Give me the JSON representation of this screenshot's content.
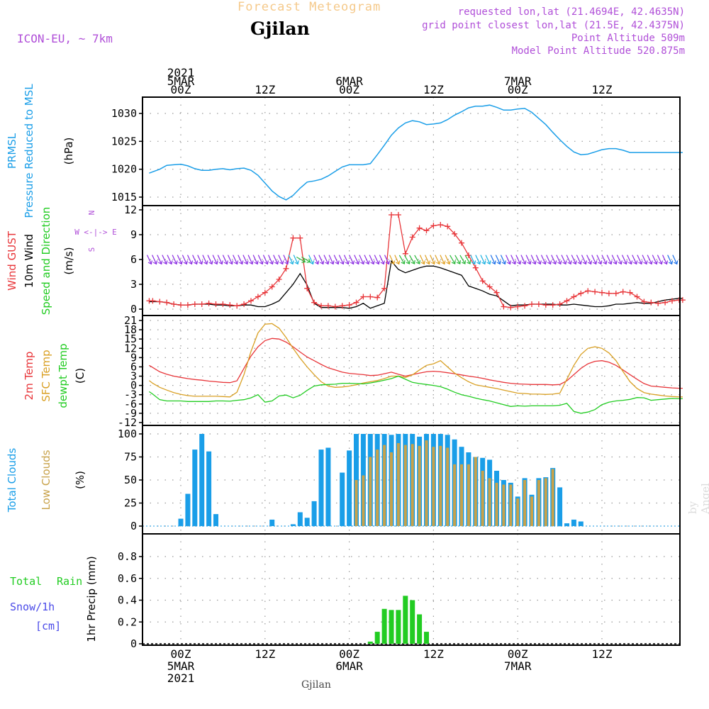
{
  "header": {
    "title": "Forecast Meteogram",
    "location": "Gjilan",
    "model": "ICON-EU, ~ 7km",
    "requested": "requested lon,lat (21.4694E, 42.4635N)",
    "grid_point": "grid point closest lon,lat (21.5E, 42.4375N)",
    "point_altitude": "Point Altitude 509m",
    "model_altitude": "Model Point Altitude 520.875m",
    "footer_location": "Gjilan",
    "watermark": "by Angel"
  },
  "colors": {
    "pressure": "#1a9ee8",
    "gust": "#e8363a",
    "wind": "#000000",
    "temp2m": "#e8363a",
    "sfc_temp": "#d9a024",
    "dewpoint": "#22cc22",
    "total_clouds": "#1a9ee8",
    "low_clouds": "#c8a24a",
    "rain": "#22cc22",
    "snow": "#4a4ae8",
    "label_purple": "#b04fd8",
    "title_orange": "#f5c98a"
  },
  "time_axis": {
    "top_labels": [
      {
        "hour": 0,
        "lines": [
          "2021",
          "5MAR",
          "00Z"
        ]
      },
      {
        "hour": 12,
        "lines": [
          "12Z"
        ]
      },
      {
        "hour": 24,
        "lines": [
          "6MAR",
          "00Z"
        ]
      },
      {
        "hour": 36,
        "lines": [
          "12Z"
        ]
      },
      {
        "hour": 48,
        "lines": [
          "7MAR",
          "00Z"
        ]
      },
      {
        "hour": 60,
        "lines": [
          "12Z"
        ]
      }
    ],
    "bottom_labels": [
      {
        "hour": 0,
        "lines": [
          "00Z",
          "5MAR",
          "2021"
        ]
      },
      {
        "hour": 12,
        "lines": [
          "12Z"
        ]
      },
      {
        "hour": 24,
        "lines": [
          "00Z",
          "6MAR"
        ]
      },
      {
        "hour": 36,
        "lines": [
          "12Z"
        ]
      },
      {
        "hour": 48,
        "lines": [
          "00Z",
          "7MAR"
        ]
      },
      {
        "hour": 60,
        "lines": [
          "12Z"
        ]
      }
    ]
  },
  "panels": {
    "pressure": {
      "labels": [
        "PRMSL",
        "Pressure Reduced to MSL"
      ],
      "unit": "(hPa)"
    },
    "wind": {
      "labels": [
        "Wind GUST",
        "10m Wind",
        "Speed and Direction"
      ],
      "unit": "(m/s)",
      "compass": "W <-|-> E",
      "north": "N",
      "south": "S"
    },
    "temperature": {
      "labels": [
        "2m Temp",
        "SFC Temp",
        "dewpt Temp"
      ],
      "unit": "(C)"
    },
    "clouds": {
      "labels": [
        "Total Clouds",
        "Low Clouds"
      ],
      "unit": "(%)"
    },
    "precip": {
      "labels": [
        "Total",
        "Rain",
        "Snow/1h",
        "[cm]"
      ],
      "unit": "1hr Precip (mm)"
    }
  },
  "chart_data": [
    {
      "type": "line",
      "name": "PRMSL",
      "ylabel": "(hPa)",
      "ylim": [
        1013,
        1033
      ],
      "yticks": [
        1015,
        1020,
        1025,
        1030
      ],
      "x": [
        -4.5,
        -3,
        -2,
        -1,
        0,
        1,
        2,
        3,
        4,
        5,
        6,
        7,
        8,
        9,
        10,
        11,
        12,
        13,
        14,
        15,
        16,
        17,
        18,
        19,
        20,
        21,
        22,
        23,
        24,
        25,
        26,
        27,
        28,
        29,
        30,
        31,
        32,
        33,
        34,
        35,
        36,
        37,
        38,
        39,
        40,
        41,
        42,
        43,
        44,
        45,
        46,
        47,
        48,
        49,
        50,
        51,
        52,
        53,
        54,
        55,
        56,
        57,
        58,
        59,
        60,
        61,
        62,
        63,
        64,
        65,
        66,
        67,
        68,
        69,
        70,
        71,
        71.5
      ],
      "series": [
        {
          "name": "PRMSL",
          "values": [
            1019.3,
            1020.0,
            1020.7,
            1020.8,
            1020.9,
            1020.6,
            1020.1,
            1019.8,
            1019.8,
            1020.0,
            1020.1,
            1019.9,
            1020.1,
            1020.2,
            1019.8,
            1018.9,
            1017.5,
            1016.1,
            1015.1,
            1014.5,
            1015.3,
            1016.6,
            1017.7,
            1017.9,
            1018.2,
            1018.8,
            1019.6,
            1020.4,
            1020.8,
            1020.8,
            1020.8,
            1021.0,
            1022.6,
            1024.3,
            1026.1,
            1027.4,
            1028.3,
            1028.7,
            1028.5,
            1028.0,
            1028.1,
            1028.3,
            1028.9,
            1029.7,
            1030.3,
            1031.0,
            1031.3,
            1031.3,
            1031.5,
            1031.1,
            1030.6,
            1030.6,
            1030.8,
            1030.9,
            1030.2,
            1029.1,
            1028.0,
            1026.6,
            1025.3,
            1024.1,
            1023.1,
            1022.6,
            1022.7,
            1023.1,
            1023.5,
            1023.7,
            1023.7,
            1023.4,
            1023.0,
            1023.0,
            1023.0,
            1023.0,
            1023.0,
            1023.0,
            1023.0,
            1023.0,
            1023.0
          ]
        }
      ]
    },
    {
      "type": "line",
      "name": "Wind",
      "ylabel": "(m/s)",
      "ylim": [
        -0.5,
        12.2
      ],
      "yticks": [
        0,
        3,
        6,
        9,
        12
      ],
      "x": [
        -4.5,
        -4,
        -3,
        -2,
        -1,
        0,
        1,
        2,
        3,
        4,
        5,
        6,
        7,
        8,
        9,
        10,
        11,
        12,
        13,
        14,
        15,
        16,
        17,
        18,
        19,
        20,
        21,
        22,
        23,
        24,
        25,
        26,
        27,
        28,
        29,
        30,
        31,
        32,
        33,
        34,
        35,
        36,
        37,
        38,
        39,
        40,
        41,
        42,
        43,
        44,
        45,
        46,
        47,
        48,
        49,
        50,
        51,
        52,
        53,
        54,
        55,
        56,
        57,
        58,
        59,
        60,
        61,
        62,
        63,
        64,
        65,
        66,
        67,
        68,
        69,
        70,
        71,
        71.5
      ],
      "series": [
        {
          "name": "Wind GUST",
          "values": [
            1.0,
            1.0,
            0.9,
            0.8,
            0.6,
            0.5,
            0.5,
            0.6,
            0.6,
            0.7,
            0.6,
            0.6,
            0.5,
            0.4,
            0.6,
            1.0,
            1.5,
            2.0,
            2.7,
            3.6,
            4.9,
            8.6,
            8.6,
            2.5,
            0.8,
            0.4,
            0.4,
            0.3,
            0.4,
            0.5,
            0.8,
            1.5,
            1.5,
            1.4,
            2.5,
            11.4,
            11.4,
            6.7,
            8.7,
            9.8,
            9.5,
            10.1,
            10.2,
            10.0,
            9.1,
            8.0,
            6.5,
            5.0,
            3.4,
            2.7,
            2.0,
            0.3,
            0.2,
            0.3,
            0.4,
            0.6,
            0.6,
            0.5,
            0.5,
            0.6,
            1.0,
            1.5,
            1.9,
            2.2,
            2.1,
            2.0,
            1.9,
            1.9,
            2.1,
            2.0,
            1.5,
            0.9,
            0.8,
            0.7,
            0.8,
            1.0,
            1.1,
            1.1
          ]
        },
        {
          "name": "10m Wind",
          "values": [
            0.9,
            0.9,
            0.9,
            0.8,
            0.6,
            0.5,
            0.5,
            0.6,
            0.6,
            0.6,
            0.5,
            0.5,
            0.4,
            0.4,
            0.5,
            0.5,
            0.3,
            0.3,
            0.6,
            1.0,
            2.0,
            3.0,
            4.3,
            2.9,
            0.7,
            0.2,
            0.2,
            0.2,
            0.2,
            0.1,
            0.3,
            0.7,
            0.1,
            0.4,
            0.7,
            5.8,
            4.8,
            4.4,
            4.7,
            5.0,
            5.2,
            5.2,
            5.0,
            4.7,
            4.4,
            4.1,
            2.8,
            2.5,
            2.2,
            1.8,
            1.6,
            1.0,
            0.4,
            0.5,
            0.5,
            0.6,
            0.6,
            0.6,
            0.6,
            0.5,
            0.5,
            0.6,
            0.5,
            0.4,
            0.3,
            0.3,
            0.4,
            0.6,
            0.6,
            0.7,
            0.8,
            0.7,
            0.7,
            0.9,
            1.1,
            1.2,
            1.3,
            1.3
          ]
        }
      ]
    },
    {
      "type": "line",
      "name": "Temperature",
      "ylabel": "(C)",
      "ylim": [
        -12,
        22
      ],
      "yticks": [
        -12,
        -9,
        -6,
        -3,
        0,
        3,
        6,
        9,
        12,
        15,
        18,
        21
      ],
      "x": [
        -4.5,
        -4,
        -3,
        -2,
        -1,
        0,
        1,
        2,
        3,
        4,
        5,
        6,
        7,
        8,
        9,
        10,
        11,
        12,
        13,
        14,
        15,
        16,
        17,
        18,
        19,
        20,
        21,
        22,
        23,
        24,
        25,
        26,
        27,
        28,
        29,
        30,
        31,
        32,
        33,
        34,
        35,
        36,
        37,
        38,
        39,
        40,
        41,
        42,
        43,
        44,
        45,
        46,
        47,
        48,
        49,
        50,
        51,
        52,
        53,
        54,
        55,
        56,
        57,
        58,
        59,
        60,
        61,
        62,
        63,
        64,
        65,
        66,
        67,
        68,
        69,
        70,
        71,
        71.5
      ],
      "series": [
        {
          "name": "2m Temp",
          "values": [
            6.5,
            5.8,
            4.4,
            3.6,
            3.0,
            2.6,
            2.2,
            1.9,
            1.7,
            1.4,
            1.2,
            1.0,
            0.9,
            1.5,
            5.5,
            9.5,
            12.5,
            14.5,
            15.2,
            15.0,
            14.0,
            12.5,
            10.8,
            9.2,
            8.0,
            6.8,
            5.7,
            5.0,
            4.3,
            3.9,
            3.7,
            3.5,
            3.2,
            3.3,
            3.8,
            4.3,
            3.6,
            3.0,
            3.5,
            4.0,
            4.4,
            4.6,
            4.4,
            4.1,
            3.8,
            3.4,
            3.0,
            2.7,
            2.3,
            1.8,
            1.4,
            1.0,
            0.7,
            0.5,
            0.4,
            0.3,
            0.3,
            0.3,
            0.2,
            0.3,
            1.5,
            3.5,
            5.5,
            7.0,
            7.8,
            8.0,
            7.5,
            6.5,
            5.0,
            3.5,
            2.0,
            0.6,
            -0.2,
            -0.4,
            -0.6,
            -0.8,
            -0.9,
            -0.9
          ]
        },
        {
          "name": "SFC Temp",
          "values": [
            1.6,
            0.7,
            -0.6,
            -1.5,
            -2.3,
            -2.9,
            -3.3,
            -3.5,
            -3.5,
            -3.5,
            -3.5,
            -3.6,
            -3.7,
            -2.2,
            3.5,
            11.0,
            17.0,
            19.8,
            20.0,
            18.5,
            15.5,
            12.0,
            8.8,
            6.0,
            3.5,
            1.2,
            -0.2,
            -0.6,
            -0.5,
            -0.2,
            0.2,
            0.8,
            1.2,
            1.6,
            2.2,
            3.0,
            3.0,
            2.6,
            3.4,
            5.0,
            6.5,
            7.0,
            8.0,
            6.0,
            4.0,
            2.5,
            1.2,
            0.2,
            -0.2,
            -0.6,
            -1.0,
            -1.5,
            -2.0,
            -2.5,
            -2.6,
            -2.8,
            -2.8,
            -2.9,
            -2.8,
            -2.5,
            2.0,
            6.5,
            10.0,
            12.0,
            12.5,
            12.0,
            10.5,
            8.0,
            4.5,
            1.2,
            -1.0,
            -2.3,
            -2.8,
            -3.1,
            -3.4,
            -3.6,
            -3.7,
            -3.7
          ]
        },
        {
          "name": "dewpt Temp",
          "values": [
            -2.0,
            -2.8,
            -4.6,
            -5.0,
            -5.0,
            -5.0,
            -5.2,
            -5.2,
            -5.2,
            -5.2,
            -5.0,
            -5.0,
            -5.1,
            -4.8,
            -4.6,
            -4.0,
            -3.0,
            -5.4,
            -5.0,
            -3.4,
            -3.1,
            -4.0,
            -3.2,
            -1.6,
            -0.2,
            0.2,
            0.3,
            0.4,
            0.7,
            0.7,
            0.6,
            0.5,
            0.8,
            1.2,
            1.7,
            2.2,
            3.0,
            2.0,
            1.0,
            0.6,
            0.3,
            0.0,
            -0.4,
            -1.2,
            -2.2,
            -3.0,
            -3.5,
            -4.1,
            -4.6,
            -5.0,
            -5.6,
            -6.2,
            -6.8,
            -6.6,
            -6.7,
            -6.6,
            -6.6,
            -6.6,
            -6.6,
            -6.4,
            -5.8,
            -8.4,
            -9.0,
            -8.6,
            -7.8,
            -6.2,
            -5.4,
            -5.0,
            -4.8,
            -4.5,
            -3.9,
            -4.0,
            -4.8,
            -4.6,
            -4.4,
            -4.2,
            -4.3,
            -4.3
          ]
        }
      ]
    },
    {
      "type": "bar",
      "name": "Clouds",
      "ylabel": "(%)",
      "ylim": [
        -8,
        108
      ],
      "yticks": [
        0,
        25,
        50,
        75,
        100
      ],
      "x": [
        0,
        1,
        2,
        3,
        4,
        5,
        6,
        7,
        8,
        9,
        10,
        11,
        12,
        13,
        14,
        15,
        16,
        17,
        18,
        19,
        20,
        21,
        22,
        23,
        24,
        25,
        26,
        27,
        28,
        29,
        30,
        31,
        32,
        33,
        34,
        35,
        36,
        37,
        38,
        39,
        40,
        41,
        42,
        43,
        44,
        45,
        46,
        47,
        48,
        49,
        50,
        51,
        52,
        53,
        54,
        55,
        56,
        57,
        58,
        59,
        60,
        61,
        62,
        63,
        64,
        65,
        66,
        67,
        68,
        69,
        70,
        71
      ],
      "series": [
        {
          "name": "Total Clouds",
          "values": [
            8,
            35,
            83,
            100,
            81,
            13,
            0,
            0,
            0,
            0,
            0,
            0,
            0,
            7,
            0,
            0,
            2,
            15,
            9,
            27,
            83,
            85,
            0,
            58,
            82,
            100,
            100,
            100,
            100,
            100,
            99,
            100,
            100,
            100,
            97,
            100,
            100,
            100,
            99,
            94,
            86,
            80,
            75,
            74,
            72,
            60,
            50,
            47,
            32,
            52,
            34,
            52,
            53,
            63,
            42,
            3,
            7,
            5,
            0,
            0,
            0,
            0,
            0,
            0,
            0,
            0,
            0,
            0,
            0,
            0,
            0,
            0
          ]
        },
        {
          "name": "Low Clouds",
          "values": [
            0,
            0,
            0,
            0,
            0,
            0,
            0,
            0,
            0,
            0,
            0,
            0,
            0,
            0,
            0,
            0,
            0,
            0,
            0,
            0,
            0,
            0,
            0,
            0,
            0,
            50,
            55,
            75,
            83,
            88,
            80,
            90,
            88,
            89,
            87,
            93,
            86,
            87,
            85,
            67,
            67,
            67,
            75,
            60,
            52,
            47,
            45,
            45,
            30,
            50,
            32,
            50,
            52,
            62,
            0,
            0,
            0,
            0,
            0,
            0,
            0,
            0,
            0,
            0,
            0,
            0,
            0,
            0,
            0,
            0,
            0,
            0
          ]
        }
      ]
    },
    {
      "type": "bar",
      "name": "Precip",
      "ylabel": "1hr Precip (mm)",
      "ylim": [
        0,
        0.95
      ],
      "yticks": [
        0,
        0.2,
        0.4,
        0.6,
        0.8
      ],
      "x": [
        27,
        28,
        29,
        30,
        31,
        32,
        33,
        34,
        35
      ],
      "series": [
        {
          "name": "Total Rain",
          "values": [
            0.02,
            0.11,
            0.32,
            0.31,
            0.31,
            0.44,
            0.4,
            0.27,
            0.11
          ]
        }
      ]
    }
  ]
}
